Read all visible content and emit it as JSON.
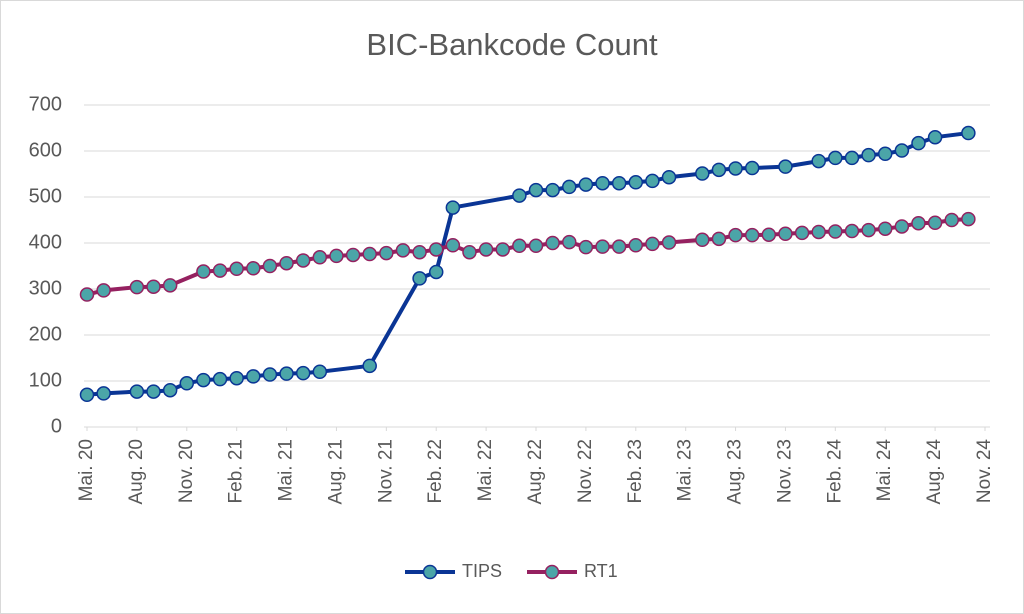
{
  "chart_data": {
    "type": "line",
    "title": "BIC-Bankcode Count",
    "ylim": [
      0,
      700
    ],
    "yticks": [
      0,
      100,
      200,
      300,
      400,
      500,
      600,
      700
    ],
    "xticks": [
      {
        "value": "2020-05",
        "label": "Mai. 20"
      },
      {
        "value": "2020-08",
        "label": "Aug. 20"
      },
      {
        "value": "2020-11",
        "label": "Nov. 20"
      },
      {
        "value": "2021-02",
        "label": "Feb. 21"
      },
      {
        "value": "2021-05",
        "label": "Mai. 21"
      },
      {
        "value": "2021-08",
        "label": "Aug. 21"
      },
      {
        "value": "2021-11",
        "label": "Nov. 21"
      },
      {
        "value": "2022-02",
        "label": "Feb. 22"
      },
      {
        "value": "2022-05",
        "label": "Mai. 22"
      },
      {
        "value": "2022-08",
        "label": "Aug. 22"
      },
      {
        "value": "2022-11",
        "label": "Nov. 22"
      },
      {
        "value": "2023-02",
        "label": "Feb. 23"
      },
      {
        "value": "2023-05",
        "label": "Mai. 23"
      },
      {
        "value": "2023-08",
        "label": "Aug. 23"
      },
      {
        "value": "2023-11",
        "label": "Nov. 23"
      },
      {
        "value": "2024-02",
        "label": "Feb. 24"
      },
      {
        "value": "2024-05",
        "label": "Mai. 24"
      },
      {
        "value": "2024-08",
        "label": "Aug. 24"
      },
      {
        "value": "2024-11",
        "label": "Nov. 24"
      }
    ],
    "xlim": [
      "2020-05",
      "2024-11"
    ],
    "grid": true,
    "legend": "bottom",
    "marker_fill": "#4ba5a8",
    "series": [
      {
        "name": "TIPS",
        "color": "#0a3595",
        "x": [
          "2020-05",
          "2020-06",
          "2020-08",
          "2020-09",
          "2020-10",
          "2020-11",
          "2020-12",
          "2021-01",
          "2021-02",
          "2021-03",
          "2021-04",
          "2021-05",
          "2021-06",
          "2021-07",
          "2021-10",
          "2022-01",
          "2022-02",
          "2022-03",
          "2022-07",
          "2022-08",
          "2022-09",
          "2022-10",
          "2022-11",
          "2022-12",
          "2023-01",
          "2023-02",
          "2023-03",
          "2023-04",
          "2023-06",
          "2023-07",
          "2023-08",
          "2023-09",
          "2023-11",
          "2024-01",
          "2024-02",
          "2024-03",
          "2024-04",
          "2024-05",
          "2024-06",
          "2024-07",
          "2024-08",
          "2024-10"
        ],
        "values": [
          70,
          73,
          77,
          77,
          80,
          95,
          102,
          104,
          106,
          110,
          114,
          116,
          117,
          120,
          133,
          323,
          337,
          477,
          503,
          515,
          515,
          522,
          527,
          530,
          530,
          532,
          535,
          543,
          551,
          559,
          562,
          563,
          566,
          578,
          585,
          585,
          591,
          594,
          601,
          617,
          630,
          639
        ]
      },
      {
        "name": "RT1",
        "color": "#952160",
        "x": [
          "2020-05",
          "2020-06",
          "2020-08",
          "2020-09",
          "2020-10",
          "2020-12",
          "2021-01",
          "2021-02",
          "2021-03",
          "2021-04",
          "2021-05",
          "2021-06",
          "2021-07",
          "2021-08",
          "2021-09",
          "2021-10",
          "2021-11",
          "2021-12",
          "2022-01",
          "2022-02",
          "2022-03",
          "2022-04",
          "2022-05",
          "2022-06",
          "2022-07",
          "2022-08",
          "2022-09",
          "2022-10",
          "2022-11",
          "2022-12",
          "2023-01",
          "2023-02",
          "2023-03",
          "2023-04",
          "2023-06",
          "2023-07",
          "2023-08",
          "2023-09",
          "2023-10",
          "2023-11",
          "2023-12",
          "2024-01",
          "2024-02",
          "2024-03",
          "2024-04",
          "2024-05",
          "2024-06",
          "2024-07",
          "2024-08",
          "2024-09",
          "2024-10"
        ],
        "values": [
          288,
          297,
          304,
          305,
          308,
          338,
          340,
          344,
          345,
          350,
          356,
          362,
          369,
          372,
          374,
          376,
          378,
          384,
          380,
          386,
          395,
          380,
          386,
          386,
          394,
          394,
          400,
          402,
          391,
          392,
          392,
          395,
          398,
          401,
          407,
          409,
          417,
          417,
          418,
          420,
          422,
          424,
          425,
          426,
          428,
          431,
          436,
          443,
          444,
          450,
          452
        ]
      }
    ]
  }
}
